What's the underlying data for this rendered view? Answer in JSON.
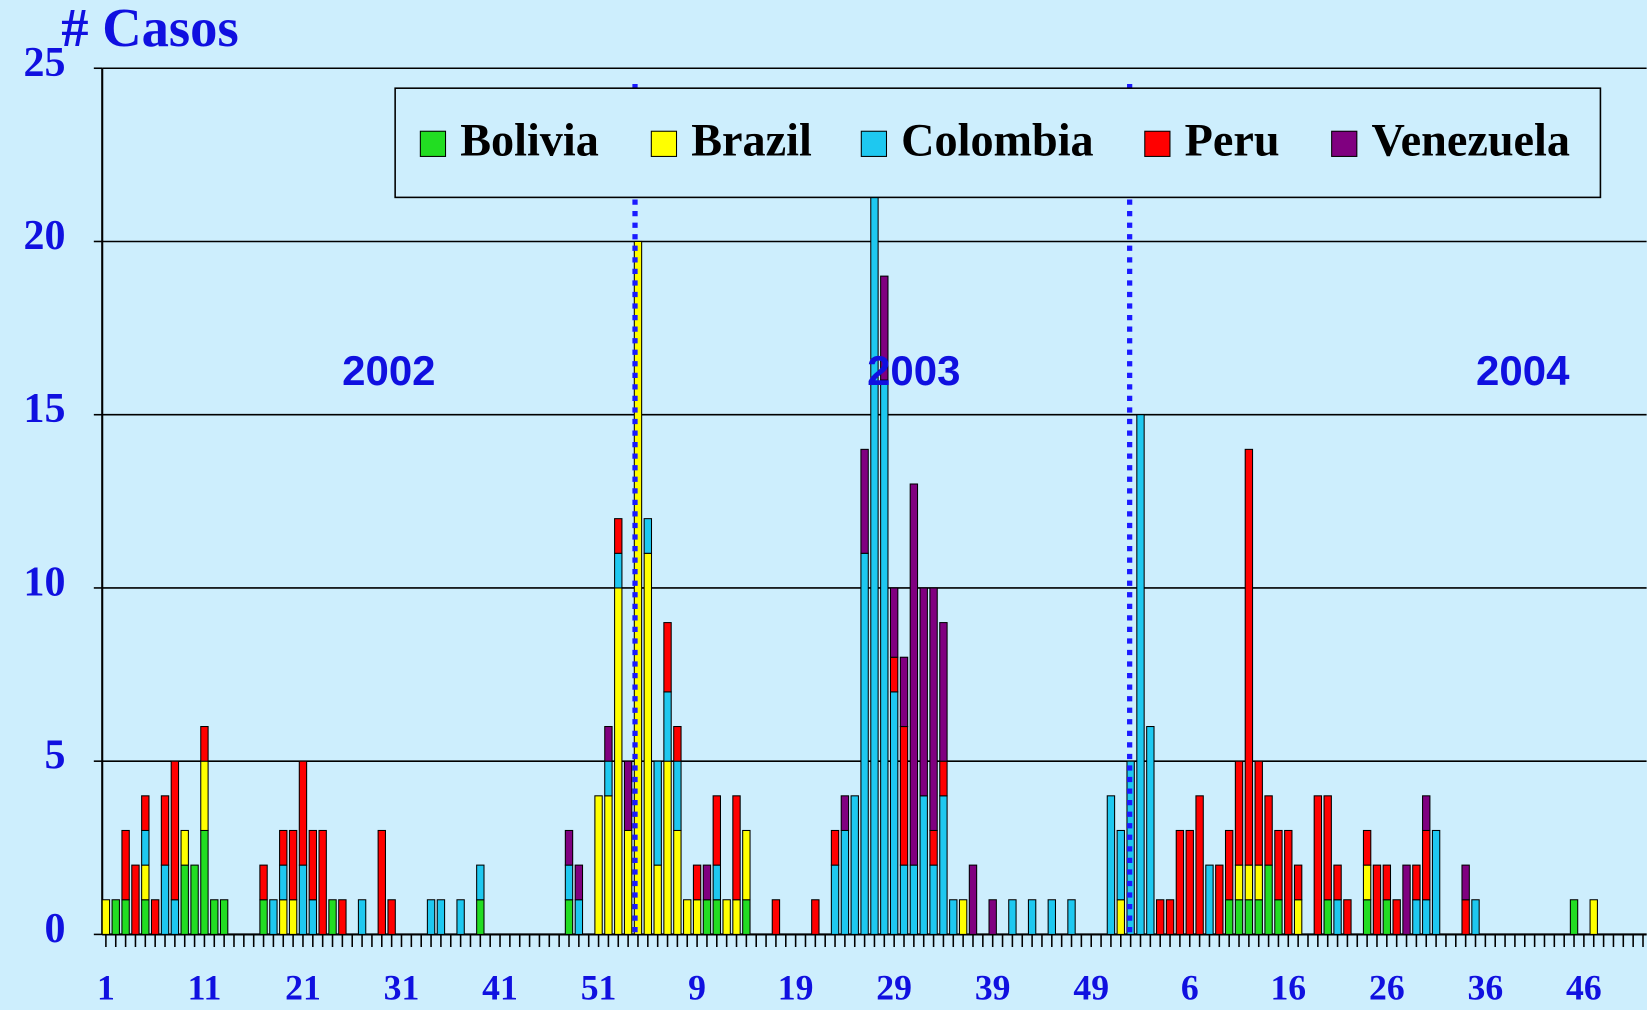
{
  "chart_data": {
    "type": "stacked_bar",
    "y_axis_label": "# Casos",
    "annotations": [
      "2002",
      "2003",
      "2004"
    ],
    "legend": "upper right",
    "grid": true,
    "ylim": [
      0,
      25
    ],
    "yticks": [
      0,
      5,
      10,
      15,
      20,
      25
    ],
    "categories": [
      "1",
      null,
      null,
      null,
      null,
      null,
      null,
      null,
      null,
      null,
      "11",
      null,
      null,
      null,
      null,
      null,
      null,
      null,
      null,
      null,
      "21",
      null,
      null,
      null,
      null,
      null,
      null,
      null,
      null,
      null,
      "31",
      null,
      null,
      null,
      null,
      null,
      null,
      null,
      null,
      null,
      "41",
      null,
      null,
      null,
      null,
      null,
      null,
      null,
      null,
      null,
      "51",
      null,
      null,
      null,
      null,
      null,
      null,
      null,
      null,
      null,
      "9",
      null,
      null,
      null,
      null,
      null,
      null,
      null,
      null,
      null,
      "19",
      null,
      null,
      null,
      null,
      null,
      null,
      null,
      null,
      null,
      "29",
      null,
      null,
      null,
      null,
      null,
      null,
      null,
      null,
      null,
      "39",
      null,
      null,
      null,
      null,
      null,
      null,
      null,
      null,
      null,
      "49",
      null,
      null,
      null,
      null,
      null,
      null,
      null,
      null,
      null,
      "6",
      null,
      null,
      null,
      null,
      null,
      null,
      null,
      null,
      null,
      "16",
      null,
      null,
      null,
      null,
      null,
      null,
      null,
      null,
      null,
      "26",
      null,
      null,
      null,
      null,
      null,
      null,
      null,
      null,
      null,
      "36",
      null,
      null,
      null,
      null,
      null,
      null,
      null,
      null,
      null,
      "46",
      null,
      null,
      null,
      null,
      null,
      null
    ],
    "series": [
      {
        "name": "Bolivia",
        "color": "#22dd22",
        "values": [
          0,
          1,
          1,
          0,
          1,
          0,
          0,
          0,
          2,
          2,
          3,
          1,
          1,
          0,
          0,
          0,
          1,
          0,
          0,
          0,
          0,
          0,
          0,
          1,
          0,
          0,
          0,
          0,
          0,
          0,
          0,
          0,
          0,
          0,
          0,
          0,
          0,
          0,
          1,
          0,
          0,
          0,
          0,
          0,
          0,
          0,
          0,
          1,
          0,
          0,
          0,
          0,
          0,
          0,
          0,
          0,
          0,
          0,
          0,
          0,
          0,
          1,
          1,
          0,
          0,
          1,
          0,
          0,
          0,
          0,
          0,
          0,
          0,
          0,
          0,
          0,
          0,
          0,
          0,
          0,
          0,
          0,
          0,
          0,
          0,
          0,
          0,
          0,
          0,
          0,
          0,
          0,
          0,
          0,
          0,
          0,
          0,
          0,
          0,
          0,
          0,
          0,
          0,
          0,
          0,
          0,
          0,
          0,
          0,
          0,
          0,
          0,
          0,
          0,
          1,
          1,
          1,
          1,
          2,
          1,
          0,
          0,
          0,
          0,
          1,
          0,
          0,
          0,
          1,
          0,
          1,
          0,
          0,
          0,
          0,
          0,
          0,
          0,
          0,
          0,
          0,
          0,
          0,
          0,
          0,
          0,
          0,
          0,
          0,
          1,
          0,
          0,
          0,
          0,
          0,
          0,
          0
        ]
      },
      {
        "name": "Brazil",
        "color": "#ffff00",
        "values": [
          1,
          0,
          0,
          0,
          1,
          0,
          0,
          0,
          1,
          0,
          2,
          0,
          0,
          0,
          0,
          0,
          0,
          0,
          1,
          1,
          0,
          0,
          0,
          0,
          0,
          0,
          0,
          0,
          0,
          0,
          0,
          0,
          0,
          0,
          0,
          0,
          0,
          0,
          0,
          0,
          0,
          0,
          0,
          0,
          0,
          0,
          0,
          0,
          0,
          0,
          4,
          4,
          10,
          3,
          20,
          11,
          2,
          5,
          3,
          1,
          1,
          0,
          0,
          1,
          1,
          2,
          0,
          0,
          0,
          0,
          0,
          0,
          0,
          0,
          0,
          0,
          0,
          0,
          0,
          0,
          0,
          0,
          0,
          0,
          0,
          0,
          0,
          1,
          0,
          0,
          0,
          0,
          0,
          0,
          0,
          0,
          0,
          0,
          0,
          0,
          0,
          0,
          0,
          1,
          0,
          0,
          0,
          0,
          0,
          0,
          0,
          0,
          0,
          0,
          0,
          1,
          1,
          1,
          0,
          0,
          0,
          1,
          0,
          0,
          0,
          0,
          0,
          0,
          1,
          0,
          0,
          0,
          0,
          0,
          0,
          0,
          0,
          0,
          0,
          0,
          0,
          0,
          0,
          0,
          0,
          0,
          0,
          0,
          0,
          0,
          0,
          1,
          0,
          0,
          0,
          0,
          0
        ]
      },
      {
        "name": "Colombia",
        "color": "#1ec8f0",
        "values": [
          0,
          0,
          0,
          0,
          1,
          0,
          2,
          1,
          0,
          0,
          0,
          0,
          0,
          0,
          0,
          0,
          0,
          1,
          1,
          0,
          2,
          1,
          0,
          0,
          0,
          0,
          1,
          0,
          0,
          0,
          0,
          0,
          0,
          1,
          1,
          0,
          1,
          0,
          1,
          0,
          0,
          0,
          0,
          0,
          0,
          0,
          0,
          1,
          1,
          0,
          0,
          1,
          1,
          0,
          0,
          1,
          3,
          2,
          2,
          0,
          0,
          0,
          1,
          0,
          0,
          0,
          0,
          0,
          0,
          0,
          0,
          0,
          0,
          0,
          2,
          3,
          4,
          11,
          22,
          16,
          7,
          2,
          2,
          4,
          2,
          4,
          1,
          0,
          0,
          0,
          0,
          0,
          1,
          0,
          1,
          0,
          1,
          0,
          1,
          0,
          0,
          0,
          4,
          2,
          5,
          15,
          6,
          0,
          0,
          0,
          0,
          0,
          2,
          0,
          0,
          0,
          0,
          0,
          0,
          0,
          0,
          0,
          0,
          0,
          0,
          1,
          0,
          0,
          0,
          0,
          0,
          0,
          0,
          1,
          1,
          3,
          0,
          0,
          0,
          1,
          0,
          0,
          0,
          0,
          0,
          0,
          0,
          0,
          0,
          0,
          0,
          0,
          0,
          0,
          0,
          0,
          0
        ]
      },
      {
        "name": "Peru",
        "color": "#ff0000",
        "values": [
          0,
          0,
          2,
          2,
          1,
          1,
          2,
          4,
          0,
          0,
          1,
          0,
          0,
          0,
          0,
          0,
          1,
          0,
          1,
          2,
          3,
          2,
          3,
          0,
          1,
          0,
          0,
          0,
          3,
          1,
          0,
          0,
          0,
          0,
          0,
          0,
          0,
          0,
          0,
          0,
          0,
          0,
          0,
          0,
          0,
          0,
          0,
          0,
          0,
          0,
          0,
          0,
          1,
          0,
          0,
          0,
          0,
          2,
          1,
          0,
          1,
          0,
          2,
          0,
          3,
          0,
          0,
          0,
          1,
          0,
          0,
          0,
          1,
          0,
          1,
          0,
          0,
          0,
          1,
          0,
          1,
          4,
          0,
          0,
          1,
          1,
          0,
          0,
          0,
          0,
          0,
          0,
          0,
          0,
          0,
          0,
          0,
          0,
          0,
          0,
          0,
          0,
          0,
          0,
          0,
          0,
          0,
          1,
          1,
          3,
          3,
          4,
          0,
          2,
          2,
          3,
          12,
          3,
          2,
          2,
          3,
          1,
          0,
          4,
          3,
          1,
          1,
          0,
          1,
          2,
          1,
          1,
          0,
          1,
          2,
          0,
          0,
          0,
          1,
          0,
          0,
          0,
          0,
          0,
          0,
          0,
          0,
          0,
          0,
          0,
          0,
          0,
          0,
          0,
          0,
          0,
          0
        ]
      },
      {
        "name": "Venezuela",
        "color": "#800080",
        "values": [
          0,
          0,
          0,
          0,
          0,
          0,
          0,
          0,
          0,
          0,
          0,
          0,
          0,
          0,
          0,
          0,
          0,
          0,
          0,
          0,
          0,
          0,
          0,
          0,
          0,
          0,
          0,
          0,
          0,
          0,
          0,
          0,
          0,
          0,
          0,
          0,
          0,
          0,
          0,
          0,
          0,
          0,
          0,
          0,
          0,
          0,
          0,
          1,
          1,
          0,
          0,
          1,
          0,
          2,
          0,
          0,
          0,
          0,
          0,
          0,
          0,
          1,
          0,
          0,
          0,
          0,
          0,
          0,
          0,
          0,
          0,
          0,
          0,
          0,
          0,
          1,
          0,
          3,
          1,
          3,
          2,
          2,
          11,
          6,
          7,
          4,
          0,
          0,
          2,
          0,
          1,
          0,
          0,
          0,
          0,
          0,
          0,
          0,
          0,
          0,
          0,
          0,
          0,
          0,
          0,
          0,
          0,
          0,
          0,
          0,
          0,
          0,
          0,
          0,
          0,
          0,
          0,
          0,
          0,
          0,
          0,
          0,
          0,
          0,
          0,
          0,
          0,
          0,
          0,
          0,
          0,
          0,
          2,
          0,
          1,
          0,
          0,
          0,
          1,
          0,
          0,
          0,
          0,
          0,
          0,
          0,
          0,
          0,
          0,
          0,
          0,
          0,
          0,
          0,
          0,
          0,
          0
        ]
      }
    ]
  }
}
